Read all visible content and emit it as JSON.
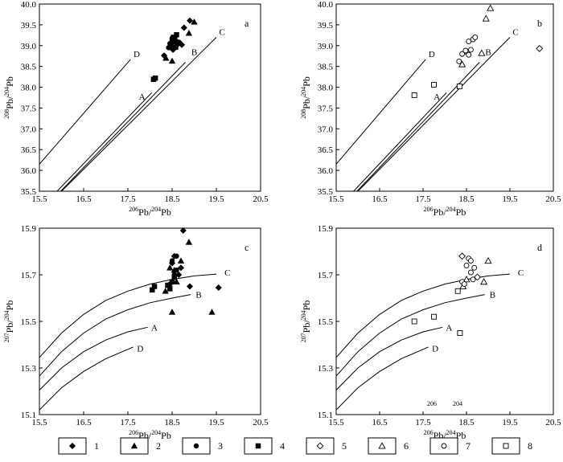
{
  "figure": {
    "legend": [
      "1",
      "2",
      "3",
      "4",
      "5",
      "6",
      "7",
      "8"
    ],
    "stray_labels": [
      "206",
      "204"
    ]
  },
  "chart_data": [
    {
      "id": "a",
      "type": "scatter",
      "panel_label": "a",
      "xlabel_parts": {
        "sup1": "206",
        "mid": "Pb/",
        "sup2": "204",
        "tail": "Pb"
      },
      "ylabel_parts": {
        "sup1": "208",
        "mid": "Pb/",
        "sup2": "204",
        "tail": "Pb"
      },
      "xlim": [
        15.5,
        20.5
      ],
      "ylim": [
        35.5,
        40.0
      ],
      "xticks": [
        "15.5",
        "16.5",
        "17.5",
        "18.5",
        "19.5",
        "20.5"
      ],
      "yticks": [
        "35.5",
        "36.0",
        "36.5",
        "37.0",
        "37.5",
        "38.0",
        "38.5",
        "39.0",
        "39.5",
        "40.0"
      ],
      "curves": [
        {
          "name": "D",
          "points": [
            [
              15.5,
              36.15
            ],
            [
              17.56,
              38.67
            ]
          ],
          "label_at": [
            17.7,
            38.8
          ]
        },
        {
          "name": "A",
          "points": [
            [
              15.9,
              35.5
            ],
            [
              18.04,
              37.87
            ]
          ],
          "label_at": [
            17.82,
            37.78
          ]
        },
        {
          "name": "B",
          "points": [
            [
              15.98,
              35.5
            ],
            [
              18.8,
              38.6
            ]
          ],
          "label_at": [
            19.0,
            38.85
          ]
        },
        {
          "name": "C",
          "points": [
            [
              16.0,
              35.5
            ],
            [
              19.5,
              39.2
            ]
          ],
          "label_at": [
            19.63,
            39.33
          ]
        }
      ],
      "series": [
        {
          "legend": "1",
          "marker": "diamond-filled",
          "points": [
            [
              18.32,
              38.76
            ],
            [
              18.45,
              38.98
            ],
            [
              18.52,
              38.9
            ],
            [
              18.63,
              39.08
            ],
            [
              18.72,
              39.02
            ],
            [
              18.77,
              39.43
            ],
            [
              18.9,
              39.6
            ]
          ]
        },
        {
          "legend": "2",
          "marker": "triangle-filled",
          "points": [
            [
              18.36,
              38.7
            ],
            [
              18.5,
              38.63
            ],
            [
              18.58,
              39.1
            ],
            [
              18.88,
              39.3
            ],
            [
              19.0,
              39.57
            ]
          ]
        },
        {
          "legend": "3",
          "marker": "circle-filled",
          "points": [
            [
              18.45,
              39.05
            ],
            [
              18.55,
              39.12
            ],
            [
              18.6,
              39.0
            ],
            [
              18.5,
              39.18
            ],
            [
              18.66,
              39.08
            ],
            [
              18.42,
              38.95
            ]
          ]
        },
        {
          "legend": "4",
          "marker": "square-filled",
          "points": [
            [
              18.08,
              38.19
            ],
            [
              18.12,
              38.22
            ],
            [
              18.48,
              39.0
            ],
            [
              18.5,
              39.1
            ],
            [
              18.53,
              39.2
            ],
            [
              18.56,
              39.15
            ],
            [
              18.6,
              39.26
            ],
            [
              18.58,
              38.96
            ],
            [
              18.62,
              39.06
            ]
          ]
        }
      ]
    },
    {
      "id": "b",
      "type": "scatter",
      "panel_label": "b",
      "xlabel_parts": {
        "sup1": "206",
        "mid": "Pb/",
        "sup2": "204",
        "tail": "Pb"
      },
      "ylabel_parts": {
        "sup1": "208",
        "mid": "Pb/",
        "sup2": "204",
        "tail": "Pb"
      },
      "xlim": [
        15.5,
        20.5
      ],
      "ylim": [
        35.5,
        40.0
      ],
      "xticks": [
        "15.5",
        "16.5",
        "17.5",
        "18.5",
        "19.5",
        "20.5"
      ],
      "yticks": [
        "35.5",
        "36.0",
        "36.5",
        "37.0",
        "37.5",
        "38.0",
        "38.5",
        "39.0",
        "39.5",
        "40.0"
      ],
      "curves": [
        {
          "name": "D",
          "points": [
            [
              15.5,
              36.15
            ],
            [
              17.56,
              38.67
            ]
          ],
          "label_at": [
            17.7,
            38.8
          ]
        },
        {
          "name": "A",
          "points": [
            [
              15.9,
              35.5
            ],
            [
              18.04,
              37.87
            ]
          ],
          "label_at": [
            17.82,
            37.78
          ]
        },
        {
          "name": "B",
          "points": [
            [
              15.98,
              35.5
            ],
            [
              18.8,
              38.6
            ]
          ],
          "label_at": [
            19.0,
            38.85
          ]
        },
        {
          "name": "C",
          "points": [
            [
              16.0,
              35.5
            ],
            [
              19.5,
              39.2
            ]
          ],
          "label_at": [
            19.63,
            39.33
          ]
        }
      ],
      "series": [
        {
          "legend": "5",
          "marker": "diamond-open",
          "points": [
            [
              20.18,
              38.93
            ]
          ]
        },
        {
          "legend": "6",
          "marker": "triangle-open",
          "points": [
            [
              18.4,
              38.55
            ],
            [
              18.85,
              38.82
            ],
            [
              18.95,
              39.65
            ],
            [
              19.05,
              39.9
            ]
          ]
        },
        {
          "legend": "7",
          "marker": "circle-open",
          "points": [
            [
              18.33,
              38.62
            ],
            [
              18.4,
              38.8
            ],
            [
              18.5,
              38.85
            ],
            [
              18.55,
              38.78
            ],
            [
              18.55,
              39.1
            ],
            [
              18.6,
              38.9
            ],
            [
              18.65,
              39.15
            ],
            [
              18.7,
              39.2
            ],
            [
              18.48,
              38.88
            ]
          ]
        },
        {
          "legend": "8",
          "marker": "square-open",
          "points": [
            [
              17.3,
              37.81
            ],
            [
              17.75,
              38.06
            ],
            [
              18.34,
              38.02
            ]
          ]
        }
      ]
    },
    {
      "id": "c",
      "type": "scatter",
      "panel_label": "c",
      "xlabel_parts": {
        "sup1": "206",
        "mid": "Pb/",
        "sup2": "204",
        "tail": "Pb"
      },
      "ylabel_parts": {
        "sup1": "207",
        "mid": "Pb/",
        "sup2": "204",
        "tail": "Pb"
      },
      "xlim": [
        15.5,
        20.5
      ],
      "ylim": [
        15.1,
        15.9
      ],
      "xticks": [
        "15.5",
        "16.5",
        "17.5",
        "18.5",
        "19.5",
        "20.5"
      ],
      "yticks": [
        "15.1",
        "15.3",
        "15.5",
        "15.7",
        "15.9"
      ],
      "curves": [
        {
          "name": "C",
          "points": [
            [
              15.5,
              15.345
            ],
            [
              16.0,
              15.45
            ],
            [
              16.5,
              15.53
            ],
            [
              17.0,
              15.59
            ],
            [
              17.5,
              15.63
            ],
            [
              18.0,
              15.66
            ],
            [
              18.5,
              15.68
            ],
            [
              19.0,
              15.695
            ],
            [
              19.5,
              15.703
            ]
          ],
          "label_at": [
            19.75,
            15.71
          ]
        },
        {
          "name": "B",
          "points": [
            [
              15.5,
              15.265
            ],
            [
              16.0,
              15.37
            ],
            [
              16.5,
              15.45
            ],
            [
              17.0,
              15.51
            ],
            [
              17.5,
              15.55
            ],
            [
              18.0,
              15.58
            ],
            [
              18.5,
              15.6
            ],
            [
              18.92,
              15.615
            ]
          ],
          "label_at": [
            19.1,
            15.615
          ]
        },
        {
          "name": "A",
          "points": [
            [
              15.5,
              15.205
            ],
            [
              16.0,
              15.3
            ],
            [
              16.5,
              15.37
            ],
            [
              17.0,
              15.42
            ],
            [
              17.5,
              15.455
            ],
            [
              17.95,
              15.475
            ]
          ],
          "label_at": [
            18.1,
            15.475
          ]
        },
        {
          "name": "D",
          "points": [
            [
              15.5,
              15.12
            ],
            [
              16.0,
              15.215
            ],
            [
              16.5,
              15.285
            ],
            [
              17.0,
              15.34
            ],
            [
              17.5,
              15.38
            ],
            [
              17.62,
              15.39
            ]
          ],
          "label_at": [
            17.78,
            15.385
          ]
        }
      ],
      "series": [
        {
          "legend": "1",
          "marker": "diamond-filled",
          "points": [
            [
              18.5,
              15.75
            ],
            [
              18.55,
              15.78
            ],
            [
              18.65,
              15.7
            ],
            [
              18.7,
              15.73
            ],
            [
              18.75,
              15.89
            ],
            [
              18.9,
              15.65
            ],
            [
              19.55,
              15.645
            ]
          ]
        },
        {
          "legend": "2",
          "marker": "triangle-filled",
          "points": [
            [
              18.35,
              15.63
            ],
            [
              18.5,
              15.54
            ],
            [
              18.55,
              15.72
            ],
            [
              18.6,
              15.67
            ],
            [
              18.7,
              15.76
            ],
            [
              18.88,
              15.84
            ],
            [
              19.4,
              15.54
            ],
            [
              18.45,
              15.73
            ]
          ]
        },
        {
          "legend": "3",
          "marker": "circle-filled",
          "points": [
            [
              18.45,
              15.66
            ],
            [
              18.55,
              15.7
            ],
            [
              18.6,
              15.72
            ],
            [
              18.5,
              15.76
            ],
            [
              18.6,
              15.78
            ]
          ]
        },
        {
          "legend": "4",
          "marker": "square-filled",
          "points": [
            [
              18.05,
              15.635
            ],
            [
              18.1,
              15.65
            ],
            [
              18.45,
              15.64
            ],
            [
              18.5,
              15.67
            ],
            [
              18.55,
              15.69
            ],
            [
              18.4,
              15.655
            ]
          ]
        }
      ]
    },
    {
      "id": "d",
      "type": "scatter",
      "panel_label": "d",
      "xlabel_parts": {
        "sup1": "206",
        "mid": "Pb/",
        "sup2": "204",
        "tail": "Pb"
      },
      "ylabel_parts": {
        "sup1": "207",
        "mid": "Pb/",
        "sup2": "204",
        "tail": "Pb"
      },
      "xlim": [
        15.5,
        20.5
      ],
      "ylim": [
        15.1,
        15.9
      ],
      "xticks": [
        "15.5",
        "16.5",
        "17.5",
        "18.5",
        "19.5",
        "20.5"
      ],
      "yticks": [
        "15.1",
        "15.3",
        "15.5",
        "15.7",
        "15.9"
      ],
      "curves": [
        {
          "name": "C",
          "points": [
            [
              15.5,
              15.345
            ],
            [
              16.0,
              15.45
            ],
            [
              16.5,
              15.53
            ],
            [
              17.0,
              15.59
            ],
            [
              17.5,
              15.63
            ],
            [
              18.0,
              15.66
            ],
            [
              18.5,
              15.68
            ],
            [
              19.0,
              15.695
            ],
            [
              19.5,
              15.703
            ]
          ],
          "label_at": [
            19.75,
            15.71
          ]
        },
        {
          "name": "B",
          "points": [
            [
              15.5,
              15.265
            ],
            [
              16.0,
              15.37
            ],
            [
              16.5,
              15.45
            ],
            [
              17.0,
              15.51
            ],
            [
              17.5,
              15.55
            ],
            [
              18.0,
              15.58
            ],
            [
              18.5,
              15.6
            ],
            [
              18.92,
              15.615
            ]
          ],
          "label_at": [
            19.1,
            15.615
          ]
        },
        {
          "name": "A",
          "points": [
            [
              15.5,
              15.205
            ],
            [
              16.0,
              15.3
            ],
            [
              16.5,
              15.37
            ],
            [
              17.0,
              15.42
            ],
            [
              17.5,
              15.455
            ],
            [
              17.95,
              15.475
            ]
          ],
          "label_at": [
            18.1,
            15.475
          ]
        },
        {
          "name": "D",
          "points": [
            [
              15.5,
              15.12
            ],
            [
              16.0,
              15.215
            ],
            [
              16.5,
              15.285
            ],
            [
              17.0,
              15.34
            ],
            [
              17.5,
              15.38
            ],
            [
              17.62,
              15.39
            ]
          ],
          "label_at": [
            17.78,
            15.385
          ]
        }
      ],
      "series": [
        {
          "legend": "6",
          "marker": "triangle-open",
          "points": [
            [
              18.42,
              15.65
            ],
            [
              18.9,
              15.67
            ],
            [
              19.0,
              15.76
            ],
            [
              18.5,
              15.68
            ]
          ]
        },
        {
          "legend": "7",
          "marker": "circle-open",
          "points": [
            [
              18.4,
              15.67
            ],
            [
              18.45,
              15.66
            ],
            [
              18.5,
              15.74
            ],
            [
              18.55,
              15.77
            ],
            [
              18.6,
              15.71
            ],
            [
              18.65,
              15.68
            ],
            [
              18.68,
              15.73
            ],
            [
              18.6,
              15.76
            ]
          ]
        },
        {
          "legend": "5",
          "marker": "diamond-open",
          "points": [
            [
              18.4,
              15.78
            ],
            [
              18.75,
              15.69
            ]
          ]
        },
        {
          "legend": "8",
          "marker": "square-open",
          "points": [
            [
              17.3,
              15.5
            ],
            [
              17.75,
              15.52
            ],
            [
              18.35,
              15.45
            ],
            [
              18.3,
              15.63
            ]
          ]
        }
      ]
    }
  ]
}
